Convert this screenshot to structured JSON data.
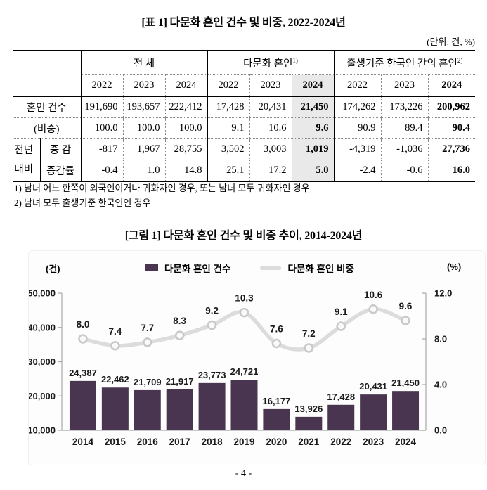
{
  "table": {
    "title": "[표 1] 다문화 혼인 건수 및 비중, 2022-2024년",
    "unit_note": "(단위: 건, %)",
    "groups": [
      {
        "label": "전 체",
        "sup": ""
      },
      {
        "label": "다문화 혼인",
        "sup": "1)"
      },
      {
        "label": "출생기준 한국인 간의 혼인",
        "sup": "2)"
      }
    ],
    "years": [
      "2022",
      "2023",
      "2024",
      "2022",
      "2023",
      "2024",
      "2022",
      "2023",
      "2024"
    ],
    "stub": {
      "line1": "전년",
      "line2": "대비"
    },
    "rows": [
      {
        "label": "혼인 건수",
        "values": [
          "191,690",
          "193,657",
          "222,412",
          "17,428",
          "20,431",
          "21,450",
          "174,262",
          "173,226",
          "200,962"
        ]
      },
      {
        "label": "(비중)",
        "values": [
          "100.0",
          "100.0",
          "100.0",
          "9.1",
          "10.6",
          "9.6",
          "90.9",
          "89.4",
          "90.4"
        ]
      },
      {
        "label": "증  감",
        "values": [
          "-817",
          "1,967",
          "28,755",
          "3,502",
          "3,003",
          "1,019",
          "-4,319",
          "-1,036",
          "27,736"
        ]
      },
      {
        "label": "증감률",
        "values": [
          "-0.4",
          "1.0",
          "14.8",
          "25.1",
          "17.2",
          "5.0",
          "-2.4",
          "-0.6",
          "16.0"
        ]
      }
    ],
    "footnotes": [
      "1) 남녀 어느 한쪽이 외국인이거나 귀화자인 경우, 또는 남녀 모두 귀화자인 경우",
      "2) 남녀 모두 출생기준 한국인인 경우"
    ]
  },
  "figure": {
    "title": "[그림 1] 다문화 혼인 건수 및 비중 추이, 2014-2024년"
  },
  "chart_data": {
    "type": "bar+line",
    "title": "[그림 1] 다문화 혼인 건수 및 비중 추이, 2014-2024년",
    "categories": [
      "2014",
      "2015",
      "2016",
      "2017",
      "2018",
      "2019",
      "2020",
      "2021",
      "2022",
      "2023",
      "2024"
    ],
    "series": [
      {
        "name": "다문화 혼인 건수",
        "type": "bar",
        "axis": "left",
        "color": "#4a3550",
        "values": [
          24387,
          22462,
          21709,
          21917,
          23773,
          24721,
          16177,
          13926,
          17428,
          20431,
          21450
        ],
        "labels": [
          "24,387",
          "22,462",
          "21,709",
          "21,917",
          "23,773",
          "24,721",
          "16,177",
          "13,926",
          "17,428",
          "20,431",
          "21,450"
        ]
      },
      {
        "name": "다문화 혼인 비중",
        "type": "line",
        "axis": "right",
        "color": "#dcdcdc",
        "marker_stroke": "#c9c9c9",
        "marker_fill": "#fafafa",
        "values": [
          8.0,
          7.4,
          7.7,
          8.3,
          9.2,
          10.3,
          7.6,
          7.2,
          9.1,
          10.6,
          9.6
        ],
        "labels": [
          "8.0",
          "7.4",
          "7.7",
          "8.3",
          "9.2",
          "10.3",
          "7.6",
          "7.2",
          "9.1",
          "10.6",
          "9.6"
        ]
      }
    ],
    "left_axis": {
      "label": "(건)",
      "min": 10000,
      "max": 50000,
      "ticks": [
        {
          "v": 50000,
          "label": "50,000"
        },
        {
          "v": 40000,
          "label": "40,000"
        },
        {
          "v": 30000,
          "label": "30,000"
        },
        {
          "v": 20000,
          "label": "20,000"
        },
        {
          "v": 10000,
          "label": "10,000"
        }
      ]
    },
    "right_axis": {
      "label": "(%)",
      "min": 0,
      "max": 12,
      "ticks": [
        {
          "v": 12,
          "label": "12.0"
        },
        {
          "v": 8,
          "label": "8.0"
        },
        {
          "v": 4,
          "label": "4.0"
        },
        {
          "v": 0,
          "label": "0.0"
        }
      ]
    },
    "legend_position": "top",
    "grid": false,
    "axis_color": "#a8a8a8"
  },
  "page": {
    "number": "- 4 -"
  }
}
